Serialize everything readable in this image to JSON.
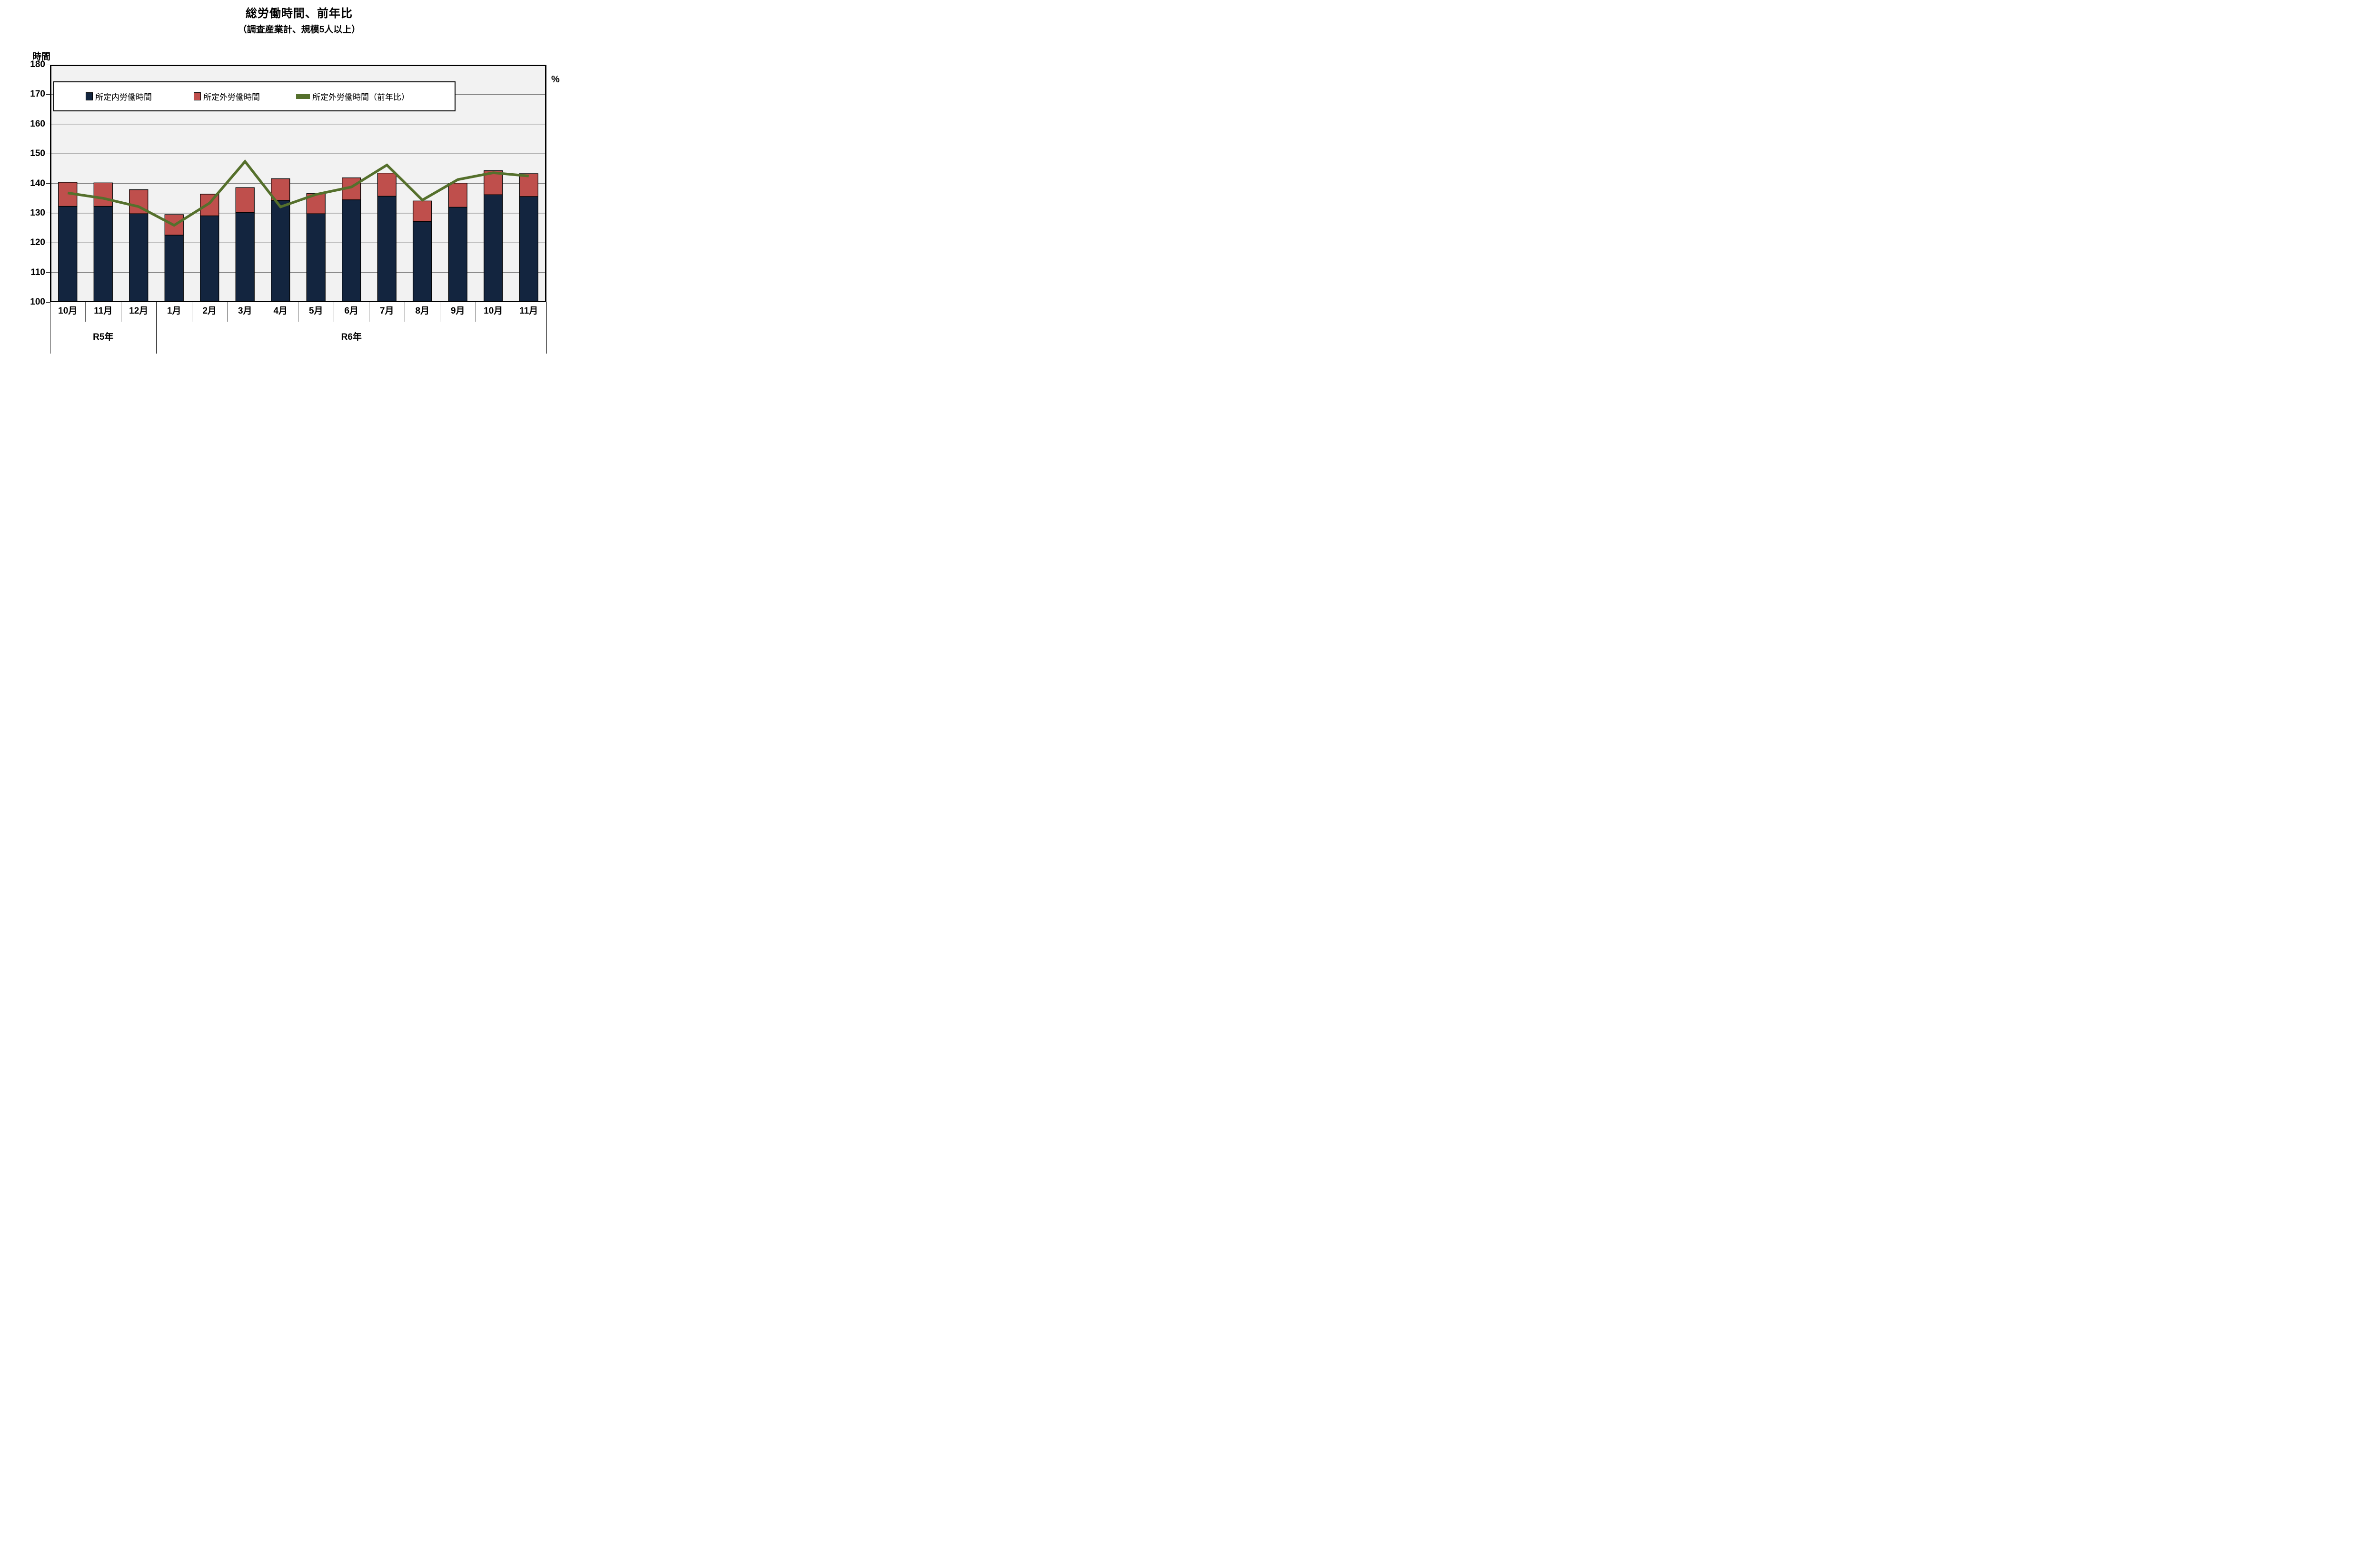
{
  "title": "総労働時間、前年比",
  "subtitle": "（調査産業計、規模5人以上）",
  "chart_data": {
    "type": "stacked-bar+line",
    "categories": [
      "10月",
      "11月",
      "12月",
      "1月",
      "2月",
      "3月",
      "4月",
      "5月",
      "6月",
      "7月",
      "8月",
      "9月",
      "10月",
      "11月"
    ],
    "groups": [
      {
        "label": "R5年",
        "span": 3
      },
      {
        "label": "R6年",
        "span": 11
      }
    ],
    "series": [
      {
        "name": "所定内労働時間",
        "type": "bar",
        "stacked": true,
        "color": "#13253F",
        "values": [
          132.3,
          132.3,
          129.8,
          122.6,
          129.1,
          130.2,
          134.3,
          129.8,
          134.5,
          135.7,
          127.2,
          132.0,
          136.2,
          135.6
        ]
      },
      {
        "name": "所定外労働時間",
        "type": "bar",
        "stacked": true,
        "color": "#BF4F4C",
        "values": [
          8.1,
          7.9,
          8.1,
          6.9,
          7.3,
          8.4,
          7.3,
          6.8,
          7.4,
          7.8,
          6.9,
          8.1,
          8.1,
          7.7
        ]
      },
      {
        "name": "所定外労働時間（前年比）",
        "type": "line",
        "axis": "right",
        "color": "#55702C",
        "note": "right axis shows no tick labels; values below are the plotted positions read on the left axis scale",
        "values_left_scale": [
          136.8,
          135.0,
          132.2,
          125.9,
          133.4,
          147.4,
          132.1,
          136.3,
          138.8,
          146.2,
          134.4,
          141.3,
          143.6,
          142.5
        ]
      }
    ],
    "left_axis": {
      "unit": "時間",
      "min": 100,
      "max": 180,
      "step": 10
    },
    "right_axis": {
      "unit": "%",
      "tick_labels_visible": false
    },
    "grid": true,
    "gridline_color": "#7F7F7F",
    "plot_background": "#F2F2F2",
    "bar_border_color": "#000000",
    "legend_position": "top-inside"
  }
}
